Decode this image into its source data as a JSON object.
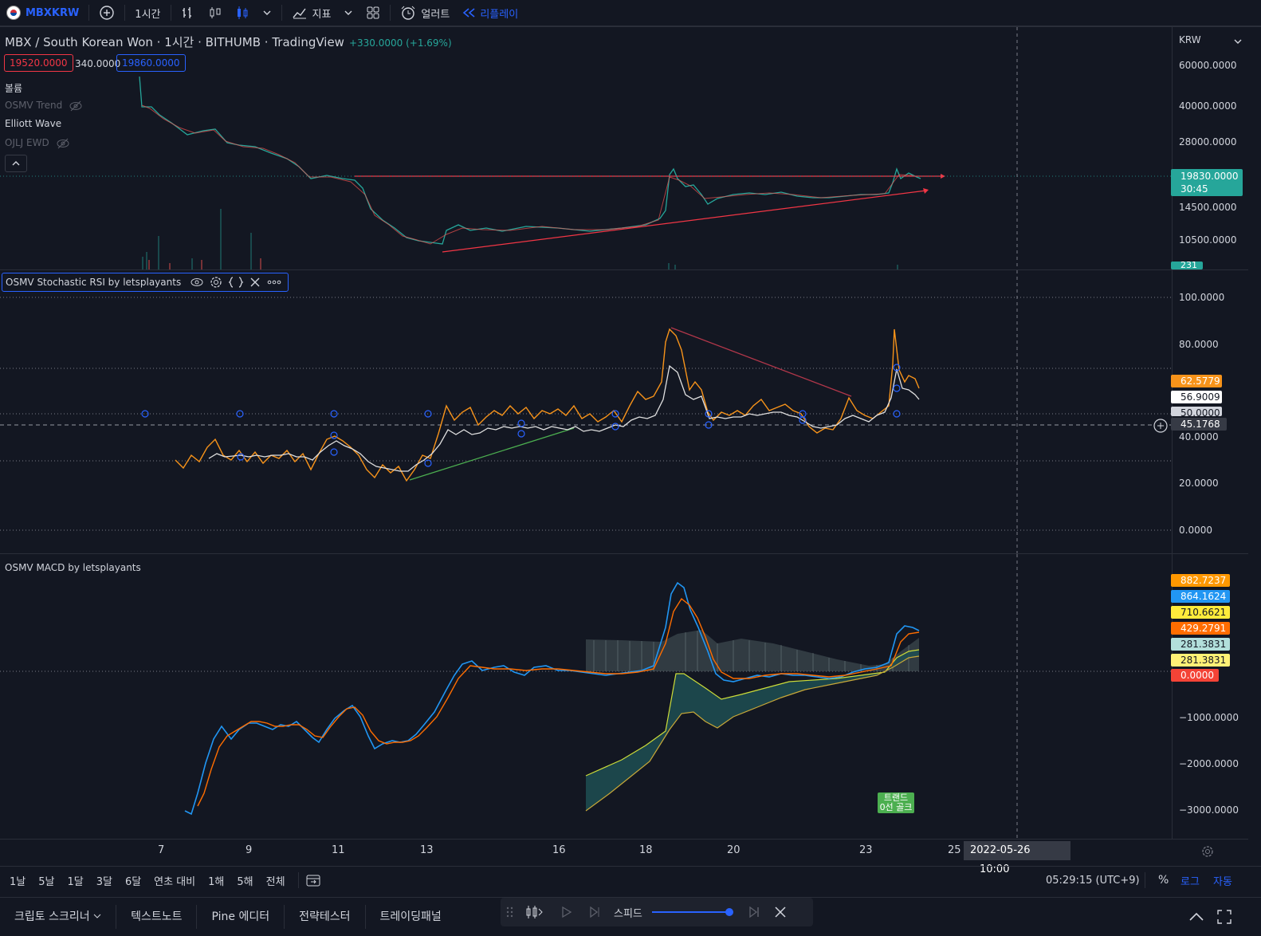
{
  "topbar": {
    "symbol": "MBXKRW",
    "interval": "1시간",
    "indicators_label": "지표",
    "alert_label": "얼러트",
    "replay_label": "리플레이"
  },
  "legend": {
    "title": "MBX / South Korean Won · 1시간 · BITHUMB · TradingView",
    "change": "+330.0000 (+1.69%)",
    "bid": "19520.0000",
    "spread": "340.0000",
    "ask": "19860.0000",
    "indicators": [
      {
        "label": "볼륨",
        "hidden": false
      },
      {
        "label": "OSMV Trend",
        "hidden": true
      },
      {
        "label": "Elliott Wave",
        "hidden": false
      },
      {
        "label": "OJLJ EWD",
        "hidden": true
      }
    ]
  },
  "price_axis": {
    "currency": "KRW",
    "ticks": [
      "60000.0000",
      "40000.0000",
      "28000.0000",
      "14500.0000",
      "10500.0000"
    ],
    "current_price": "19830.0000",
    "countdown": "30:45",
    "volume_tag": "231"
  },
  "stoch": {
    "title": "OSMV Stochastic RSI by letsplayants",
    "ticks": [
      "100.0000",
      "80.0000",
      "40.0000",
      "20.0000",
      "0.0000"
    ],
    "tag_k": "62.5779",
    "tag_d": "56.9009",
    "tag_mid": "50.0000",
    "crosshair": "45.1768",
    "colors": {
      "k": "#f7931a",
      "d": "#e0e0e0"
    }
  },
  "macd": {
    "title": "OSMV MACD by letsplayants",
    "ticks": [
      "−1000.0000",
      "−2000.0000",
      "−3000.0000"
    ],
    "tags": [
      {
        "value": "882.7237",
        "bg": "#ff9800",
        "fg": "#ffffff"
      },
      {
        "value": "864.1624",
        "bg": "#2196f3",
        "fg": "#ffffff"
      },
      {
        "value": "710.6621",
        "bg": "#ffeb3b",
        "fg": "#131722"
      },
      {
        "value": "429.2791",
        "bg": "#ff6d00",
        "fg": "#ffffff"
      },
      {
        "value": "281.3831",
        "bg": "#b2dfdb",
        "fg": "#131722"
      },
      {
        "value": "281.3831",
        "bg": "#fff176",
        "fg": "#131722"
      },
      {
        "value": "0.0000",
        "bg": "#f44336",
        "fg": "#ffffff"
      }
    ],
    "badge": "트랜드\n0선 골크"
  },
  "time_axis": {
    "labels": [
      "7",
      "9",
      "11",
      "13",
      "16",
      "18",
      "20",
      "23",
      "25"
    ],
    "crosshair_date": "2022-05-26",
    "crosshair_time": "10:00"
  },
  "ranges": [
    "1날",
    "5날",
    "1달",
    "3달",
    "6달",
    "연초 대비",
    "1해",
    "5해",
    "전체"
  ],
  "clock": "05:29:15 (UTC+9)",
  "scale_opts": {
    "percent": "%",
    "log": "로그",
    "auto": "자동"
  },
  "footer_tabs": [
    "크립토 스크리너",
    "텍스트노트",
    "Pine 에디터",
    "전략테스터",
    "트레이딩패널"
  ],
  "replay": {
    "speed_label": "스피드"
  }
}
